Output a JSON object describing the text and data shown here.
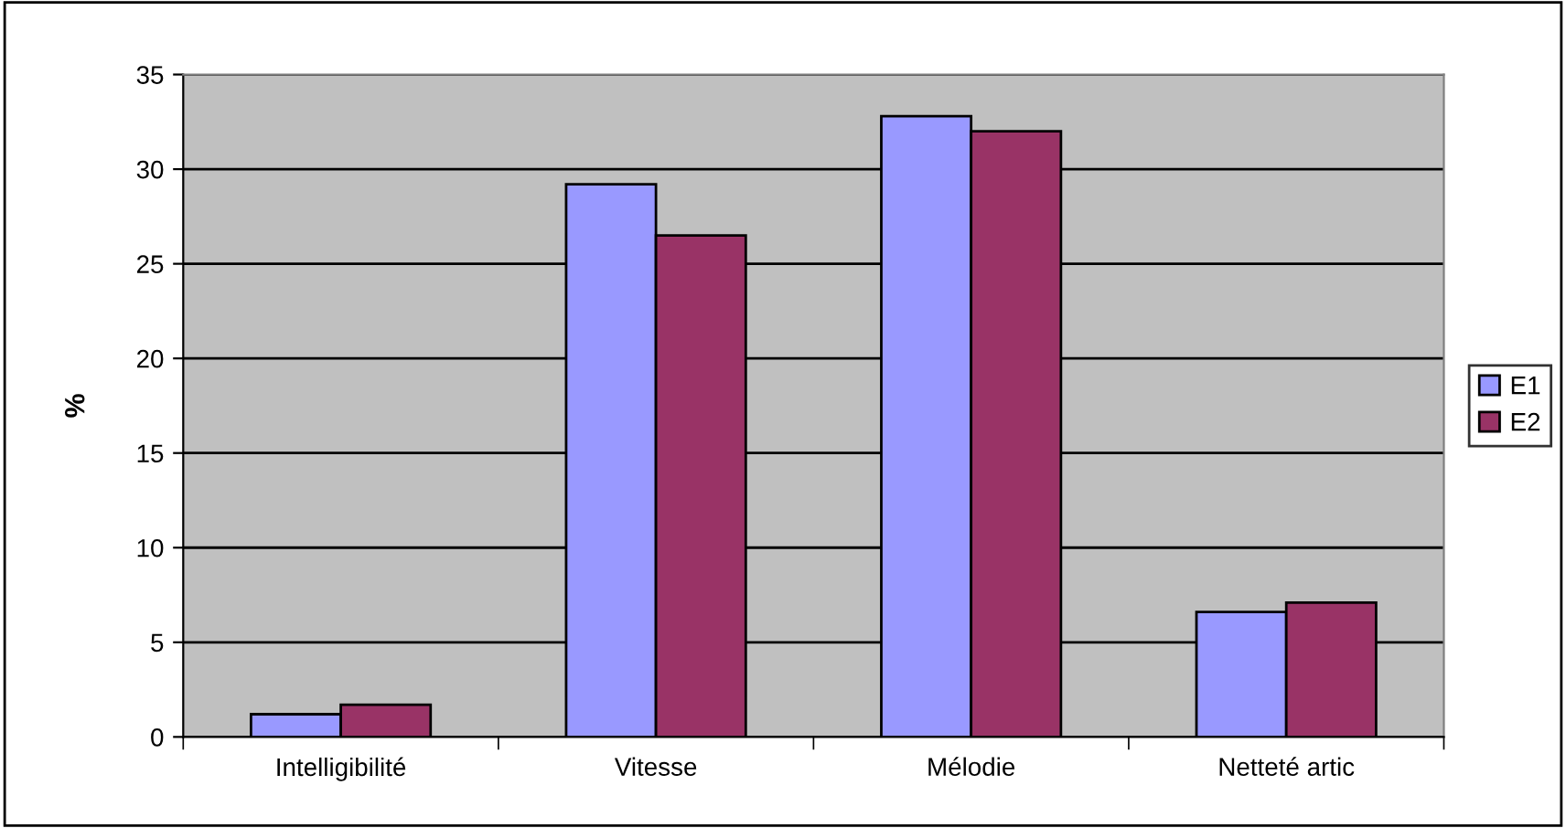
{
  "chart_data": {
    "type": "bar",
    "ylabel": "%",
    "categories": [
      "Intelligibilité",
      "Vitesse",
      "Mélodie",
      "Netteté artic"
    ],
    "series": [
      {
        "name": "E1",
        "color": "#9999ff",
        "values": [
          1.2,
          29.2,
          32.8,
          6.6
        ]
      },
      {
        "name": "E2",
        "color": "#993366",
        "values": [
          1.7,
          26.5,
          32.0,
          7.1
        ]
      }
    ],
    "ylim": [
      0,
      35
    ],
    "yticks": [
      0,
      5,
      10,
      15,
      20,
      25,
      30,
      35
    ],
    "grid": "y",
    "legend": "right"
  }
}
